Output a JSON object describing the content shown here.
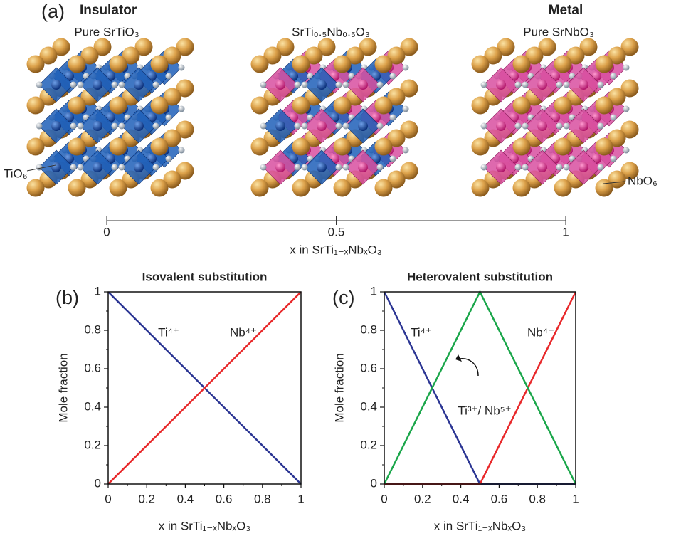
{
  "panel_a": {
    "label": "(a)",
    "left_title": "Insulator",
    "right_title": "Metal",
    "structures": [
      "Pure SrTiO₃",
      "SrTi₀.₅Nb₀.₅O₃",
      "Pure SrNbO₃"
    ],
    "left_note": "TiO₆",
    "right_note": "NbO₆",
    "scale": {
      "xlim": [
        0,
        1
      ],
      "xticks": [
        0,
        0.5,
        1
      ],
      "xlabel": "x in SrTi₁₋ₓNbₓO₃"
    }
  },
  "chart_data": [
    {
      "type": "line",
      "panel_label": "(b)",
      "title": "Isovalent substitution",
      "xlabel": "x in SrTi₁₋ₓNbₓO₃",
      "ylabel": "Mole fraction",
      "x": [
        0,
        1
      ],
      "series": [
        {
          "name": "Ti⁴⁺",
          "color": "#2b3593",
          "values": [
            1,
            0
          ]
        },
        {
          "name": "Nb⁴⁺",
          "color": "#e8282a",
          "values": [
            0,
            1
          ]
        }
      ],
      "xlim": [
        0,
        1
      ],
      "ylim": [
        0,
        1
      ],
      "xticks": [
        0,
        0.2,
        0.4,
        0.6,
        0.8,
        1
      ],
      "yticks": [
        0,
        0.2,
        0.4,
        0.6,
        0.8,
        1
      ],
      "xminorticks": [
        0.1,
        0.3,
        0.5,
        0.7,
        0.9
      ],
      "yminorticks": [
        0.1,
        0.3,
        0.5,
        0.7,
        0.9
      ]
    },
    {
      "type": "line",
      "panel_label": "(c)",
      "title": "Heterovalent substitution",
      "xlabel": "x in SrTi₁₋ₓNbₓO₃",
      "ylabel": "Mole fraction",
      "x": [
        0,
        0.5,
        1
      ],
      "series": [
        {
          "name": "Ti⁴⁺",
          "color": "#2b3593",
          "values": [
            1,
            0,
            0
          ]
        },
        {
          "name": "Nb⁴⁺",
          "color": "#e8282a",
          "values": [
            0,
            0,
            1
          ]
        },
        {
          "name": "Ti³⁺/ Nb⁵⁺",
          "color": "#1aa64a",
          "values": [
            0,
            1,
            0
          ]
        }
      ],
      "xlim": [
        0,
        1
      ],
      "ylim": [
        0,
        1
      ],
      "xticks": [
        0,
        0.2,
        0.4,
        0.6,
        0.8,
        1
      ],
      "yticks": [
        0,
        0.2,
        0.4,
        0.6,
        0.8,
        1
      ],
      "xminorticks": [
        0.1,
        0.3,
        0.5,
        0.7,
        0.9
      ],
      "yminorticks": [
        0.1,
        0.3,
        0.5,
        0.7,
        0.9
      ]
    }
  ]
}
